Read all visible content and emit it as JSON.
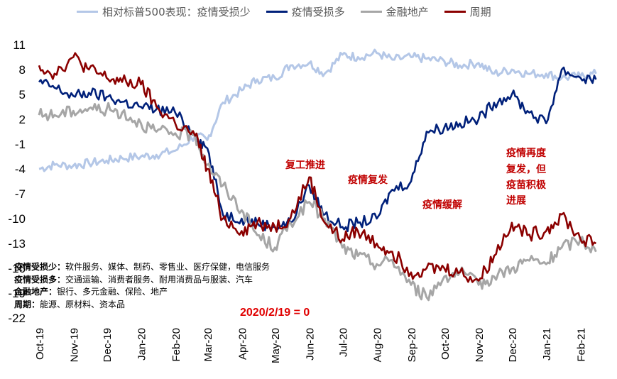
{
  "chart_data": {
    "type": "line",
    "baseline_note": "2020/2/19 = 0",
    "y_ticks": [
      "11",
      "8",
      "5",
      "2",
      "-1",
      "-4",
      "-7",
      "-10",
      "-13",
      "-16",
      "-19",
      "-22"
    ],
    "ylim": [
      -22,
      11
    ],
    "x_ticks": [
      "Oct-19",
      "Nov-19",
      "Dec-19",
      "Jan-20",
      "Feb-20",
      "Mar-20",
      "Apr-20",
      "May-20",
      "Jun-20",
      "Jul-20",
      "Aug-20",
      "Sep-20",
      "Oct-20",
      "Nov-20",
      "Dec-20",
      "Jan-21",
      "Feb-21"
    ],
    "x": [
      "2019-10-01",
      "2019-10-15",
      "2019-11-01",
      "2019-11-15",
      "2019-12-01",
      "2019-12-15",
      "2020-01-01",
      "2020-01-15",
      "2020-02-01",
      "2020-02-19",
      "2020-03-01",
      "2020-03-15",
      "2020-04-01",
      "2020-04-15",
      "2020-05-01",
      "2020-05-15",
      "2020-06-01",
      "2020-06-15",
      "2020-07-01",
      "2020-07-15",
      "2020-08-01",
      "2020-08-15",
      "2020-09-01",
      "2020-09-15",
      "2020-10-01",
      "2020-10-15",
      "2020-11-01",
      "2020-11-15",
      "2020-12-01",
      "2020-12-15",
      "2021-01-01",
      "2021-01-15",
      "2021-02-01",
      "2021-02-15"
    ],
    "series": [
      {
        "name": "相对标普500表现：疫情受损少",
        "color": "#b4c7e7",
        "values": [
          -4.0,
          -3.5,
          -3.6,
          -3.3,
          -3.0,
          -2.7,
          -2.5,
          -2.3,
          -1.8,
          0.0,
          -0.5,
          4.0,
          5.5,
          6.8,
          7.0,
          8.5,
          8.8,
          7.5,
          9.8,
          9.5,
          10.0,
          9.2,
          9.5,
          9.3,
          9.0,
          8.5,
          8.8,
          7.5,
          8.0,
          7.5,
          7.5,
          7.0,
          7.2,
          7.5
        ]
      },
      {
        "name": "疫情受损多",
        "color": "#00207a",
        "values": [
          6.5,
          5.8,
          4.8,
          5.2,
          4.7,
          4.1,
          3.5,
          3.2,
          2.8,
          0.0,
          -1.5,
          -9.5,
          -10.0,
          -10.5,
          -11.0,
          -10.5,
          -6.0,
          -9.5,
          -11.0,
          -10.5,
          -10.0,
          -6.5,
          -5.5,
          0.5,
          1.0,
          1.5,
          2.0,
          4.0,
          5.0,
          3.0,
          1.5,
          8.0,
          7.0,
          6.8
        ]
      },
      {
        "name": "金融地产",
        "color": "#a6a6a6",
        "values": [
          2.5,
          2.5,
          3.0,
          3.3,
          3.2,
          2.8,
          1.5,
          0.5,
          0.3,
          0.0,
          -3.5,
          -6.0,
          -9.0,
          -12.0,
          -13.5,
          -10.5,
          -8.0,
          -10.0,
          -13.5,
          -14.5,
          -15.5,
          -15.0,
          -18.0,
          -19.5,
          -17.0,
          -16.5,
          -18.0,
          -17.0,
          -16.0,
          -15.0,
          -15.5,
          -13.5,
          -12.5,
          -14.0
        ]
      },
      {
        "name": "周期",
        "color": "#8b0000",
        "values": [
          8.5,
          7.5,
          9.5,
          8.0,
          7.0,
          6.5,
          6.2,
          3.5,
          1.5,
          0.0,
          -4.0,
          -10.0,
          -11.5,
          -10.5,
          -11.0,
          -10.0,
          -5.0,
          -10.5,
          -12.5,
          -11.5,
          -13.0,
          -14.0,
          -16.5,
          -16.0,
          -16.0,
          -16.5,
          -17.5,
          -14.5,
          -10.5,
          -12.0,
          -11.5,
          -9.5,
          -12.5,
          -13.0
        ]
      }
    ],
    "annotations": [
      {
        "text": "复工推进"
      },
      {
        "text": "疫情复发"
      },
      {
        "text": "疫情缓解"
      },
      {
        "text": "疫情再度"
      },
      {
        "text": "复发，但"
      },
      {
        "text": "疫苗积极"
      },
      {
        "text": "进展"
      }
    ],
    "notes": [
      {
        "label": "疫情受损少：",
        "text": "软件服务、媒体、制药、零售业、医疗保健，电信服务"
      },
      {
        "label": "疫情受损多：",
        "text": "交通运输、消费者服务、耐用消费品与服装、汽车"
      },
      {
        "label": "金融地产：",
        "text": "银行、多元金融、保险、地产"
      },
      {
        "label": "周期：",
        "text": "能源、原材料、资本品"
      }
    ],
    "grid": false,
    "legend_position": "top"
  }
}
